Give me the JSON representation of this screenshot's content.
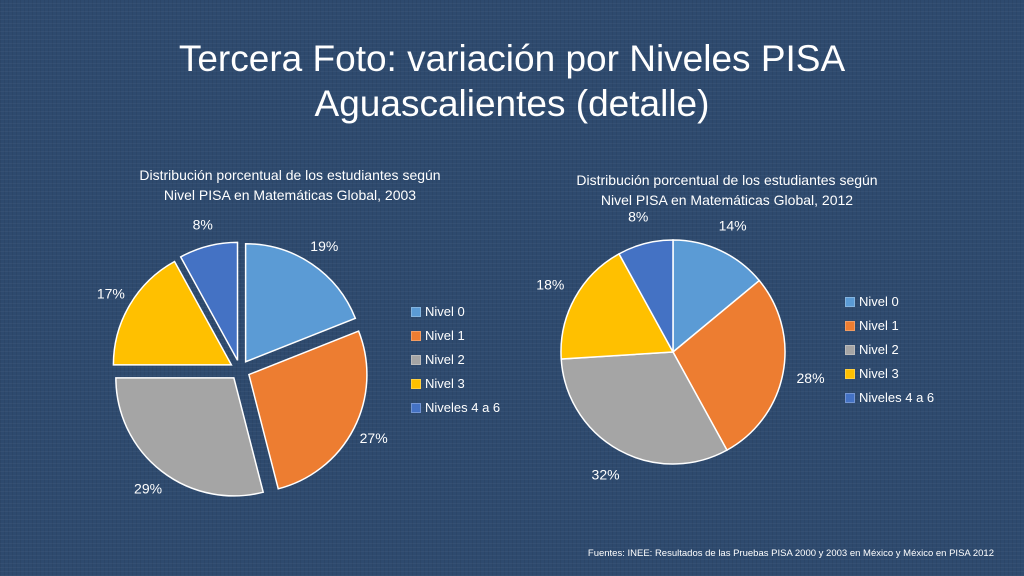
{
  "slide": {
    "title_line1": "Tercera Foto: variación por Niveles PISA",
    "title_line2": "Aguascalientes (detalle)",
    "footer": "Fuentes: INEE: Resultados de las Pruebas PISA 2000 y 2003 en México y México en PISA 2012"
  },
  "colors": {
    "background": "#2e4a6e",
    "nivel_0": "#5b9bd5",
    "nivel_1": "#ed7d31",
    "nivel_2": "#a5a5a5",
    "nivel_3": "#ffc000",
    "niveles_4_6": "#4472c4"
  },
  "chart_data": [
    {
      "type": "pie",
      "exploded": true,
      "title_line1": "Distribución porcentual de los estudiantes según",
      "title_line2": "Nivel PISA en Matemáticas Global, 2003",
      "categories": [
        "Nivel 0",
        "Nivel 1",
        "Nivel 2",
        "Nivel 3",
        "Niveles 4 a 6"
      ],
      "values": [
        19,
        27,
        29,
        17,
        8
      ],
      "labels": [
        "19%",
        "27%",
        "29%",
        "17%",
        "8%"
      ],
      "legend_position": "right"
    },
    {
      "type": "pie",
      "exploded": false,
      "title_line1": "Distribución porcentual de los estudiantes según",
      "title_line2": "Nivel PISA en Matemáticas Global, 2012",
      "categories": [
        "Nivel 0",
        "Nivel 1",
        "Nivel 2",
        "Nivel 3",
        "Niveles 4 a 6"
      ],
      "values": [
        14,
        28,
        32,
        18,
        8
      ],
      "labels": [
        "14%",
        "28%",
        "32%",
        "18%",
        "8%"
      ],
      "legend_position": "right"
    }
  ]
}
